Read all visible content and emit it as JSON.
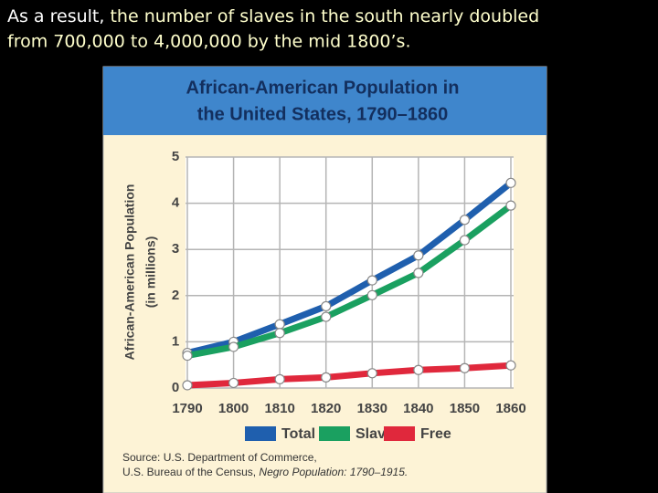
{
  "slide_text": [
    "As a result,",
    "the number of slaves in the south nearly doubled",
    "from 700,000 to 4,000,000 by the mid 1800’s."
  ],
  "chart_data": {
    "type": "line",
    "title": [
      "African-American Population in",
      "the United States, 1790–1860"
    ],
    "ylabel": [
      "African-American Population",
      "(in millions)"
    ],
    "categories": [
      "1790",
      "1800",
      "1810",
      "1820",
      "1830",
      "1840",
      "1850",
      "1860"
    ],
    "series": [
      {
        "name": "Total",
        "color": "#1f5fae",
        "values": [
          0.76,
          1.0,
          1.38,
          1.77,
          2.33,
          2.87,
          3.64,
          4.44
        ]
      },
      {
        "name": "Slave",
        "color": "#1aa060",
        "values": [
          0.7,
          0.89,
          1.19,
          1.54,
          2.01,
          2.49,
          3.2,
          3.95
        ]
      },
      {
        "name": "Free",
        "color": "#e0283c",
        "values": [
          0.06,
          0.11,
          0.19,
          0.23,
          0.32,
          0.39,
          0.43,
          0.49
        ]
      }
    ],
    "ylim": [
      0,
      5
    ],
    "yticks": [
      0,
      1,
      2,
      3,
      4,
      5
    ],
    "grid": true,
    "source": [
      "Source: U.S. Department of Commerce,",
      "U.S. Bureau of the Census, ",
      "Negro Population: 1790–1915."
    ]
  }
}
